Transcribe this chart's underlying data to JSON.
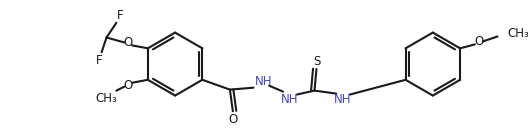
{
  "bg_color": "#ffffff",
  "line_color": "#1a1a1a",
  "line_width": 1.5,
  "font_size": 8.5,
  "fig_w": 5.31,
  "fig_h": 1.36,
  "dpi": 100,
  "xlim": [
    0,
    531
  ],
  "ylim": [
    0,
    136
  ]
}
